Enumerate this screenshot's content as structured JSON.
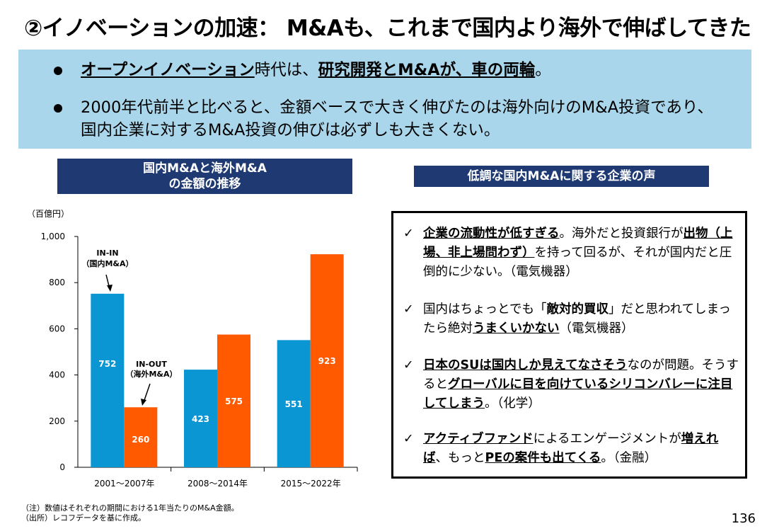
{
  "title": "②イノベーションの加速： M&Aも、これまで国内より海外で伸ばしてきた",
  "bullets": {
    "b1": {
      "u1": "オープンイノベーション",
      "t1": "時代は、",
      "u2": "研究開発とM&Aが、車の両輪",
      "t2": "。"
    },
    "b2": {
      "line1": "2000年代前半と比べると、金額ベースで大きく伸びたのは海外向けのM&A投資であり、",
      "line2": "国内企業に対するM&A投資の伸びは必ずしも大きくない。"
    }
  },
  "chart_header": {
    "line1": "国内M&Aと海外M&A",
    "line2": "の金額の推移"
  },
  "voices_header": "低調な国内M&Aに関する企業の声",
  "chart_data": {
    "type": "bar",
    "unit_label": "（百億円）",
    "categories": [
      "2001～2007年",
      "2008～2014年",
      "2015～2022年"
    ],
    "series": [
      {
        "name": "IN-IN（国内M&A）",
        "values": [
          752,
          423,
          551
        ],
        "color": "#0a96d2"
      },
      {
        "name": "IN-OUT（海外M&A）",
        "values": [
          260,
          575,
          923
        ],
        "color": "#ff5a00"
      }
    ],
    "yticks": [
      "0",
      "200",
      "400",
      "600",
      "800",
      "1,000"
    ],
    "ylim": [
      0,
      1000
    ],
    "annotations": {
      "inin": {
        "l1": "IN-IN",
        "l2": "（国内M&A）"
      },
      "inout": {
        "l1": "IN-OUT",
        "l2": "（海外M&A）"
      }
    }
  },
  "voices": [
    {
      "u1": "企業の流動性が低すぎる",
      "t1": "。海外だと投資銀行が",
      "u2": "出物（上場、非上場問わず）",
      "t2": "を持って回るが、それが国内だと圧倒的に少ない。（電気機器）"
    },
    {
      "t0": "国内はちょっとでも「",
      "b1": "敵対的買収",
      "t1": "」だと思われてしまったら絶対",
      "u2": "うまくいかない",
      "t2": "（電気機器）"
    },
    {
      "u1": "日本のSUは国内しか見えてなさそう",
      "t1": "なのが問題。そうすると",
      "u2": "グローバルに目を向けているシリコンバレーに注目してしまう",
      "t2": "。（化学）"
    },
    {
      "u1": "アクティブファンド",
      "t1": "によるエンゲージメントが",
      "u2": "増えれば",
      "t2": "、もっと",
      "u3": "PEの案件も出てくる",
      "t3": "。（金融）"
    }
  ],
  "check_mark": "✓",
  "notes": {
    "n1": "（注）数値はそれぞれの期間における1年当たりのM&A金額。",
    "n2": "（出所）レコフデータを基に作成。"
  },
  "page_number": "136"
}
